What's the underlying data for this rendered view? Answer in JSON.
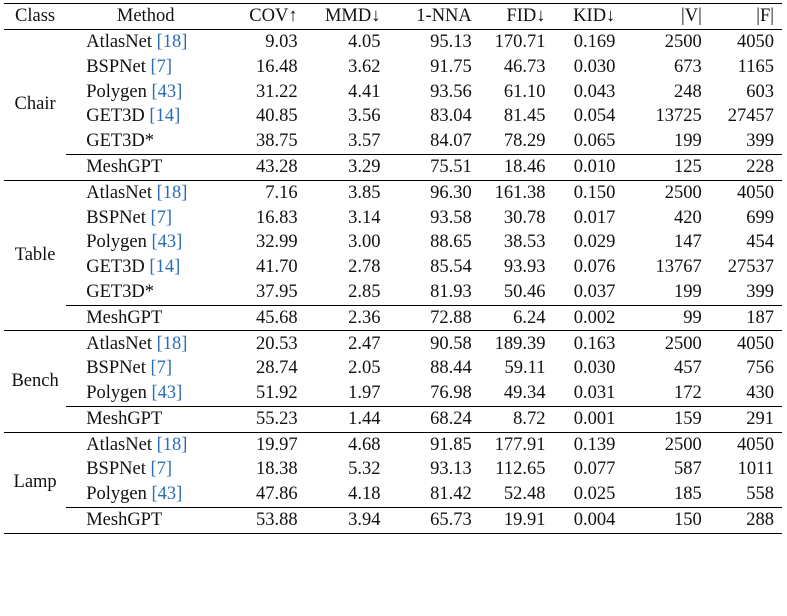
{
  "columns": {
    "class": "Class",
    "method": "Method",
    "cov": "COV↑",
    "mmd": "MMD↓",
    "nna": "1-NNA",
    "fid": "FID↓",
    "kid": "KID↓",
    "v": "|V|",
    "f": "|F|"
  },
  "groups": [
    {
      "class": "Chair",
      "rows": [
        {
          "method": "AtlasNet",
          "cite": "[18]",
          "cov": "9.03",
          "mmd": "4.05",
          "nna": "95.13",
          "fid": "170.71",
          "kid": "0.169",
          "v": "2500",
          "f": "4050"
        },
        {
          "method": "BSPNet",
          "cite": "[7]",
          "cov": "16.48",
          "mmd": "3.62",
          "nna": "91.75",
          "fid": "46.73",
          "kid": "0.030",
          "v": "673",
          "f": "1165"
        },
        {
          "method": "Polygen",
          "cite": "[43]",
          "cov": "31.22",
          "mmd": "4.41",
          "nna": "93.56",
          "fid": "61.10",
          "kid": "0.043",
          "v": "248",
          "f": "603"
        },
        {
          "method": "GET3D",
          "cite": "[14]",
          "cov": "40.85",
          "mmd": "3.56",
          "nna": "83.04",
          "fid": "81.45",
          "kid": "0.054",
          "v": "13725",
          "f": "27457"
        },
        {
          "method": "GET3D*",
          "cite": "",
          "cov": "38.75",
          "mmd": "3.57",
          "nna": "84.07",
          "fid": "78.29",
          "kid": "0.065",
          "v": "199",
          "f": "399"
        }
      ],
      "ours": {
        "method": "MeshGPT",
        "cov": "43.28",
        "mmd": "3.29",
        "nna": "75.51",
        "fid": "18.46",
        "kid": "0.010",
        "v": "125",
        "f": "228"
      }
    },
    {
      "class": "Table",
      "rows": [
        {
          "method": "AtlasNet",
          "cite": "[18]",
          "cov": "7.16",
          "mmd": "3.85",
          "nna": "96.30",
          "fid": "161.38",
          "kid": "0.150",
          "v": "2500",
          "f": "4050"
        },
        {
          "method": "BSPNet",
          "cite": "[7]",
          "cov": "16.83",
          "mmd": "3.14",
          "nna": "93.58",
          "fid": "30.78",
          "kid": "0.017",
          "v": "420",
          "f": "699"
        },
        {
          "method": "Polygen",
          "cite": "[43]",
          "cov": "32.99",
          "mmd": "3.00",
          "nna": "88.65",
          "fid": "38.53",
          "kid": "0.029",
          "v": "147",
          "f": "454"
        },
        {
          "method": "GET3D",
          "cite": "[14]",
          "cov": "41.70",
          "mmd": "2.78",
          "nna": "85.54",
          "fid": "93.93",
          "kid": "0.076",
          "v": "13767",
          "f": "27537"
        },
        {
          "method": "GET3D*",
          "cite": "",
          "cov": "37.95",
          "mmd": "2.85",
          "nna": "81.93",
          "fid": "50.46",
          "kid": "0.037",
          "v": "199",
          "f": "399"
        }
      ],
      "ours": {
        "method": "MeshGPT",
        "cov": "45.68",
        "mmd": "2.36",
        "nna": "72.88",
        "fid": "6.24",
        "kid": "0.002",
        "v": "99",
        "f": "187"
      }
    },
    {
      "class": "Bench",
      "rows": [
        {
          "method": "AtlasNet",
          "cite": "[18]",
          "cov": "20.53",
          "mmd": "2.47",
          "nna": "90.58",
          "fid": "189.39",
          "kid": "0.163",
          "v": "2500",
          "f": "4050"
        },
        {
          "method": "BSPNet",
          "cite": "[7]",
          "cov": "28.74",
          "mmd": "2.05",
          "nna": "88.44",
          "fid": "59.11",
          "kid": "0.030",
          "v": "457",
          "f": "756"
        },
        {
          "method": "Polygen",
          "cite": "[43]",
          "cov": "51.92",
          "mmd": "1.97",
          "nna": "76.98",
          "fid": "49.34",
          "kid": "0.031",
          "v": "172",
          "f": "430"
        }
      ],
      "ours": {
        "method": "MeshGPT",
        "cov": "55.23",
        "mmd": "1.44",
        "nna": "68.24",
        "fid": "8.72",
        "kid": "0.001",
        "v": "159",
        "f": "291"
      }
    },
    {
      "class": "Lamp",
      "rows": [
        {
          "method": "AtlasNet",
          "cite": "[18]",
          "cov": "19.97",
          "mmd": "4.68",
          "nna": "91.85",
          "fid": "177.91",
          "kid": "0.139",
          "v": "2500",
          "f": "4050"
        },
        {
          "method": "BSPNet",
          "cite": "[7]",
          "cov": "18.38",
          "mmd": "5.32",
          "nna": "93.13",
          "fid": "112.65",
          "kid": "0.077",
          "v": "587",
          "f": "1011"
        },
        {
          "method": "Polygen",
          "cite": "[43]",
          "cov": "47.86",
          "mmd": "4.18",
          "nna": "81.42",
          "fid": "52.48",
          "kid": "0.025",
          "v": "185",
          "f": "558"
        }
      ],
      "ours": {
        "method": "MeshGPT",
        "cov": "53.88",
        "mmd": "3.94",
        "nna": "65.73",
        "fid": "19.91",
        "kid": "0.004",
        "v": "150",
        "f": "288"
      }
    }
  ],
  "colors": {
    "citation": "#2a6db5",
    "text": "#111111",
    "rule": "#000000"
  }
}
